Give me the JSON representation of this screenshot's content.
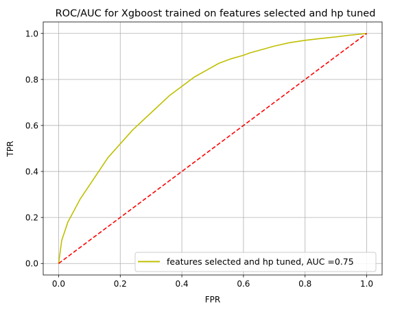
{
  "chart_data": {
    "type": "line",
    "title": "ROC/AUC for Xgboost trained on features selected and hp tuned",
    "xlabel": "FPR",
    "ylabel": "TPR",
    "xlim": [
      -0.05,
      1.05
    ],
    "ylim": [
      -0.05,
      1.05
    ],
    "xticks": [
      0.0,
      0.2,
      0.4,
      0.6,
      0.8,
      1.0
    ],
    "yticks": [
      0.0,
      0.2,
      0.4,
      0.6,
      0.8,
      1.0
    ],
    "x_tick_labels": [
      "0.0",
      "0.2",
      "0.4",
      "0.6",
      "0.8",
      "1.0"
    ],
    "y_tick_labels": [
      "0.0",
      "0.2",
      "0.4",
      "0.6",
      "0.8",
      "1.0"
    ],
    "grid": true,
    "legend_position": "lower right",
    "series": [
      {
        "name": "features selected and hp tuned, AUC =0.75",
        "color": "#bfbf00",
        "style": "solid",
        "x": [
          0.0,
          0.01,
          0.02,
          0.03,
          0.05,
          0.07,
          0.1,
          0.13,
          0.16,
          0.2,
          0.24,
          0.28,
          0.32,
          0.36,
          0.4,
          0.44,
          0.48,
          0.52,
          0.56,
          0.6,
          0.62,
          0.66,
          0.7,
          0.75,
          0.8,
          0.85,
          0.9,
          0.95,
          1.0
        ],
        "y": [
          0.0,
          0.1,
          0.14,
          0.18,
          0.23,
          0.28,
          0.34,
          0.4,
          0.46,
          0.52,
          0.58,
          0.63,
          0.68,
          0.73,
          0.77,
          0.81,
          0.84,
          0.87,
          0.89,
          0.905,
          0.915,
          0.93,
          0.945,
          0.96,
          0.97,
          0.978,
          0.985,
          0.993,
          1.0
        ]
      },
      {
        "color": "#ff0000",
        "style": "dashed",
        "x": [
          0.0,
          1.0
        ],
        "y": [
          0.0,
          1.0
        ]
      }
    ]
  }
}
